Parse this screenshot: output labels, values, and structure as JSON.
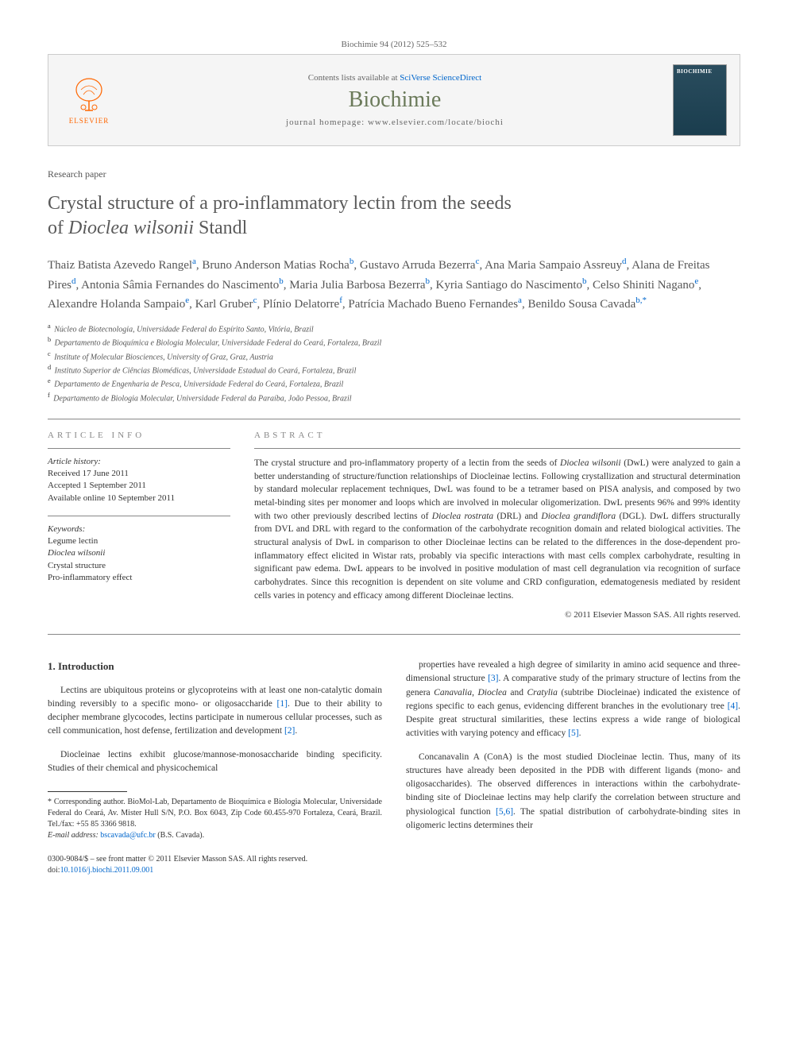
{
  "header": {
    "citation": "Biochimie 94 (2012) 525–532"
  },
  "journalBox": {
    "publisherName": "ELSEVIER",
    "contentsText": "Contents lists available at ",
    "contentsLink": "SciVerse ScienceDirect",
    "journalName": "Biochimie",
    "homepageText": "journal homepage: www.elsevier.com/locate/biochi",
    "coverLabel": "BIOCHIMIE"
  },
  "articleType": "Research paper",
  "title": {
    "line1": "Crystal structure of a pro-inflammatory lectin from the seeds",
    "line2_pre": "of ",
    "line2_italic": "Dioclea wilsonii",
    "line2_post": " Standl"
  },
  "authors": "Thaiz Batista Azevedo Rangel|a|, Bruno Anderson Matias Rocha|b|, Gustavo Arruda Bezerra|c|, Ana Maria Sampaio Assreuy|d|, Alana de Freitas Pires|d|, Antonia Sâmia Fernandes do Nascimento|b|, Maria Julia Barbosa Bezerra|b|, Kyria Santiago do Nascimento|b|, Celso Shiniti Nagano|e|, Alexandre Holanda Sampaio|e|, Karl Gruber|c|, Plínio Delatorre|f|, Patrícia Machado Bueno Fernandes|a|, Benildo Sousa Cavada|b,*|",
  "affiliations": [
    {
      "sup": "a",
      "text": "Núcleo de Biotecnologia, Universidade Federal do Espírito Santo, Vitória, Brazil"
    },
    {
      "sup": "b",
      "text": "Departamento de Bioquímica e Biologia Molecular, Universidade Federal do Ceará, Fortaleza, Brazil"
    },
    {
      "sup": "c",
      "text": "Institute of Molecular Biosciences, University of Graz, Graz, Austria"
    },
    {
      "sup": "d",
      "text": "Instituto Superior de Ciências Biomédicas, Universidade Estadual do Ceará, Fortaleza, Brazil"
    },
    {
      "sup": "e",
      "text": "Departamento de Engenharia de Pesca, Universidade Federal do Ceará, Fortaleza, Brazil"
    },
    {
      "sup": "f",
      "text": "Departamento de Biologia Molecular, Universidade Federal da Paraíba, João Pessoa, Brazil"
    }
  ],
  "articleInfo": {
    "heading": "ARTICLE INFO",
    "historyHead": "Article history:",
    "received": "Received 17 June 2011",
    "accepted": "Accepted 1 September 2011",
    "online": "Available online 10 September 2011",
    "keywordsHead": "Keywords:",
    "keywords": [
      "Legume lectin",
      "Dioclea wilsonii",
      "Crystal structure",
      "Pro-inflammatory effect"
    ]
  },
  "abstract": {
    "heading": "ABSTRACT",
    "text": "The crystal structure and pro-inflammatory property of a lectin from the seeds of <i>Dioclea wilsonii</i> (DwL) were analyzed to gain a better understanding of structure/function relationships of Diocleinae lectins. Following crystallization and structural determination by standard molecular replacement techniques, DwL was found to be a tetramer based on PISA analysis, and composed by two metal-binding sites per monomer and loops which are involved in molecular oligomerization. DwL presents 96% and 99% identity with two other previously described lectins of <i>Dioclea rostrata</i> (DRL) and <i>Dioclea grandiflora</i> (DGL). DwL differs structurally from DVL and DRL with regard to the conformation of the carbohydrate recognition domain and related biological activities. The structural analysis of DwL in comparison to other Diocleinae lectins can be related to the differences in the dose-dependent pro-inflammatory effect elicited in Wistar rats, probably via specific interactions with mast cells complex carbohydrate, resulting in significant paw edema. DwL appears to be involved in positive modulation of mast cell degranulation via recognition of surface carbohydrates. Since this recognition is dependent on site volume and CRD configuration, edematogenesis mediated by resident cells varies in potency and efficacy among different Diocleinae lectins.",
    "copyright": "© 2011 Elsevier Masson SAS. All rights reserved."
  },
  "body": {
    "section1Head": "1. Introduction",
    "col1": {
      "p1": "Lectins are ubiquitous proteins or glycoproteins with at least one non-catalytic domain binding reversibly to a specific mono- or oligosaccharide <a>[1]</a>. Due to their ability to decipher membrane glycocodes, lectins participate in numerous cellular processes, such as cell communication, host defense, fertilization and development <a>[2]</a>.",
      "p2": "Diocleinae lectins exhibit glucose/mannose-monosaccharide binding specificity. Studies of their chemical and physicochemical"
    },
    "col2": {
      "p1": "properties have revealed a high degree of similarity in amino acid sequence and three-dimensional structure <a>[3]</a>. A comparative study of the primary structure of lectins from the genera <i>Canavalia</i>, <i>Dioclea</i> and <i>Cratylia</i> (subtribe Diocleinae) indicated the existence of regions specific to each genus, evidencing different branches in the evolutionary tree <a>[4]</a>. Despite great structural similarities, these lectins express a wide range of biological activities with varying potency and efficacy <a>[5]</a>.",
      "p2": "Concanavalin A (ConA) is the most studied Diocleinae lectin. Thus, many of its structures have already been deposited in the PDB with different ligands (mono- and oligosaccharides). The observed differences in interactions within the carbohydrate-binding site of Diocleinae lectins may help clarify the correlation between structure and physiological function <a>[5,6]</a>. The spatial distribution of carbohydrate-binding sites in oligomeric lectins determines their"
    }
  },
  "footnote": {
    "corresponding": "* Corresponding author. BioMol-Lab, Departamento de Bioquímica e Biologia Molecular, Universidade Federal do Ceará, Av. Mister Hull S/N, P.O. Box 6043, Zip Code 60.455-970 Fortaleza, Ceará, Brazil. Tel./fax: +55 85 3366 9818.",
    "emailLabel": "E-mail address: ",
    "email": "bscavada@ufc.br",
    "emailSuffix": " (B.S. Cavada)."
  },
  "footer": {
    "issn": "0300-9084/$ – see front matter © 2011 Elsevier Masson SAS. All rights reserved.",
    "doiLabel": "doi:",
    "doi": "10.1016/j.biochi.2011.09.001"
  }
}
